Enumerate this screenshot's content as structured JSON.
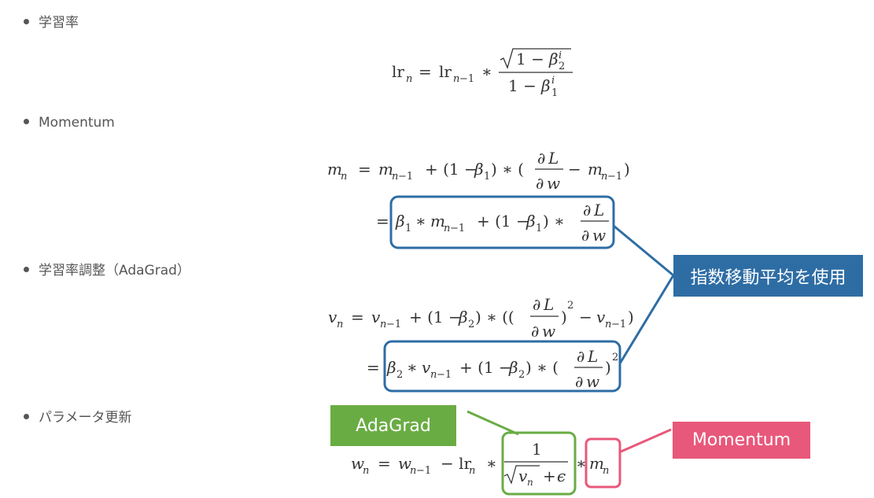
{
  "bullets": {
    "lr": "学習率",
    "momentum": "Momentum",
    "adagrad": "学習率調整（AdaGrad）",
    "update": "パラメータ更新"
  },
  "callouts": {
    "ema": "指数移動平均を使用",
    "adagrad": "AdaGrad",
    "momentum": "Momentum"
  },
  "colors": {
    "blue": "#2e6da4",
    "green": "#6aac44",
    "pink": "#e8587a"
  }
}
